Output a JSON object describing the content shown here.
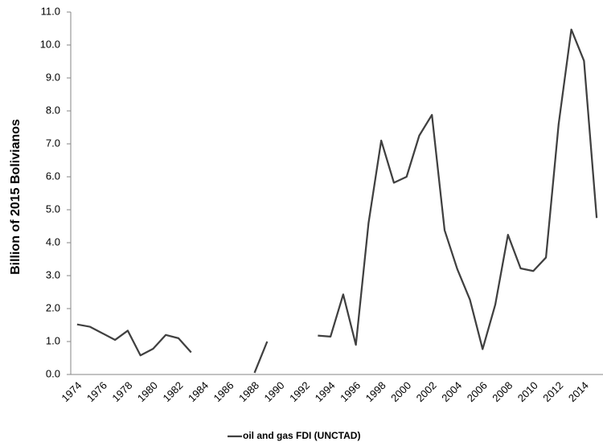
{
  "chart_data": {
    "type": "line",
    "y_label": "Billion of 2015 Bolivianos",
    "categories": [
      "1974",
      null,
      "1976",
      null,
      "1978",
      null,
      "1980",
      null,
      "1982",
      null,
      "1984",
      null,
      "1986",
      null,
      "1988",
      null,
      "1990",
      null,
      "1992",
      null,
      "1994",
      null,
      "1996",
      null,
      "1998",
      null,
      "2000",
      null,
      "2002",
      null,
      "2004",
      null,
      "2006",
      null,
      "2008",
      null,
      "2010",
      null,
      "2012",
      null,
      "2014",
      null
    ],
    "series": [
      {
        "name": "oil and gas FDI (UNCTAD)",
        "color": "#404040",
        "values": [
          1.52,
          1.45,
          1.25,
          1.05,
          1.33,
          0.58,
          0.78,
          1.2,
          1.1,
          0.67,
          null,
          null,
          null,
          null,
          0.05,
          1.0,
          null,
          null,
          null,
          1.18,
          1.15,
          2.43,
          0.9,
          4.6,
          7.1,
          5.82,
          6.0,
          7.25,
          7.88,
          4.38,
          3.2,
          2.27,
          0.77,
          2.12,
          4.24,
          3.22,
          3.14,
          3.55,
          7.6,
          10.47,
          9.52,
          4.75
        ]
      }
    ],
    "ylim": [
      0,
      11
    ],
    "yticks": [
      {
        "value": 0,
        "label": "0.0"
      },
      {
        "value": 1,
        "label": "1.0"
      },
      {
        "value": 2,
        "label": "2.0"
      },
      {
        "value": 3,
        "label": "3.0"
      },
      {
        "value": 4,
        "label": "4.0"
      },
      {
        "value": 5,
        "label": "5.0"
      },
      {
        "value": 6,
        "label": "6.0"
      },
      {
        "value": 7,
        "label": "7.0"
      },
      {
        "value": 8,
        "label": "8.0"
      },
      {
        "value": 9,
        "label": "9.0"
      },
      {
        "value": 10,
        "label": "10.0"
      },
      {
        "value": 11,
        "label": "11.0"
      }
    ],
    "grid": false,
    "legend": "bottom"
  }
}
